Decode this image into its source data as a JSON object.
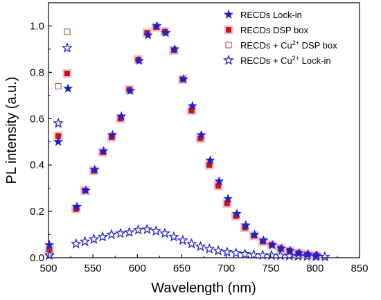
{
  "chart_data": {
    "type": "scatter",
    "xlabel": "Wavelength (nm)",
    "ylabel": "PL intensity (a.u.)",
    "xlim": [
      500,
      850
    ],
    "ylim": [
      0,
      1.1
    ],
    "x_ticks": [
      "500",
      "550",
      "600",
      "650",
      "700",
      "750",
      "800",
      "850"
    ],
    "y_ticks": [
      "0.0",
      "0.2",
      "0.4",
      "0.6",
      "0.8",
      "1.0"
    ],
    "legend_position": "top-right",
    "legend": [
      {
        "base": "RECDs Lock-in",
        "sup": "",
        "suffix": ""
      },
      {
        "base": "RECDs DSP box",
        "sup": "",
        "suffix": ""
      },
      {
        "base": "RECDs + Cu",
        "sup": "2+",
        "suffix": " DSP box"
      },
      {
        "base": "RECDs + Cu",
        "sup": "2+",
        "suffix": " Lock-in"
      }
    ],
    "series": [
      {
        "marker": "star-filled",
        "color": "#1f1fcc",
        "x": [
          501,
          511,
          522,
          532,
          542,
          552,
          562,
          572,
          582,
          592,
          602,
          612,
          622,
          632,
          642,
          652,
          662,
          672,
          682,
          692,
          702,
          712,
          722,
          732,
          742,
          752,
          762,
          772,
          782,
          792,
          802
        ],
        "y": [
          0.055,
          0.5,
          0.73,
          0.22,
          0.29,
          0.38,
          0.46,
          0.53,
          0.61,
          0.72,
          0.85,
          0.96,
          1.0,
          0.97,
          0.9,
          0.77,
          0.655,
          0.53,
          0.42,
          0.33,
          0.255,
          0.19,
          0.14,
          0.1,
          0.075,
          0.055,
          0.04,
          0.03,
          0.02,
          0.015,
          0.01
        ]
      },
      {
        "marker": "square-filled",
        "color": "#cc1111",
        "x": [
          501,
          511,
          521,
          531,
          541,
          551,
          561,
          571,
          581,
          591,
          601,
          611,
          621,
          631,
          641,
          651,
          661,
          671,
          681,
          691,
          701,
          711,
          721,
          731,
          741,
          751,
          761,
          771,
          781,
          791,
          801
        ],
        "y": [
          0.035,
          0.525,
          0.795,
          0.21,
          0.29,
          0.375,
          0.455,
          0.52,
          0.6,
          0.725,
          0.855,
          0.97,
          0.995,
          0.975,
          0.895,
          0.77,
          0.635,
          0.515,
          0.4,
          0.31,
          0.235,
          0.18,
          0.13,
          0.095,
          0.07,
          0.055,
          0.04,
          0.03,
          0.02,
          0.015,
          0.01
        ]
      },
      {
        "marker": "square-open",
        "color": "#b5543a",
        "x": [
          501,
          511,
          521
        ],
        "y": [
          0.02,
          0.74,
          0.975
        ]
      },
      {
        "marker": "star-open",
        "color": "#1f1fcc",
        "x": [
          501,
          511,
          521,
          531,
          541,
          551,
          561,
          571,
          581,
          591,
          601,
          611,
          621,
          631,
          641,
          651,
          661,
          671,
          681,
          691,
          701,
          711,
          721,
          731,
          741,
          751,
          761,
          771,
          781,
          791,
          801,
          811
        ],
        "y": [
          0.01,
          0.58,
          0.905,
          0.06,
          0.07,
          0.08,
          0.09,
          0.1,
          0.105,
          0.11,
          0.12,
          0.122,
          0.115,
          0.105,
          0.09,
          0.075,
          0.06,
          0.048,
          0.038,
          0.03,
          0.024,
          0.02,
          0.016,
          0.013,
          0.011,
          0.01,
          0.009,
          0.008,
          0.007,
          0.006,
          0.005,
          0.004
        ]
      }
    ]
  }
}
